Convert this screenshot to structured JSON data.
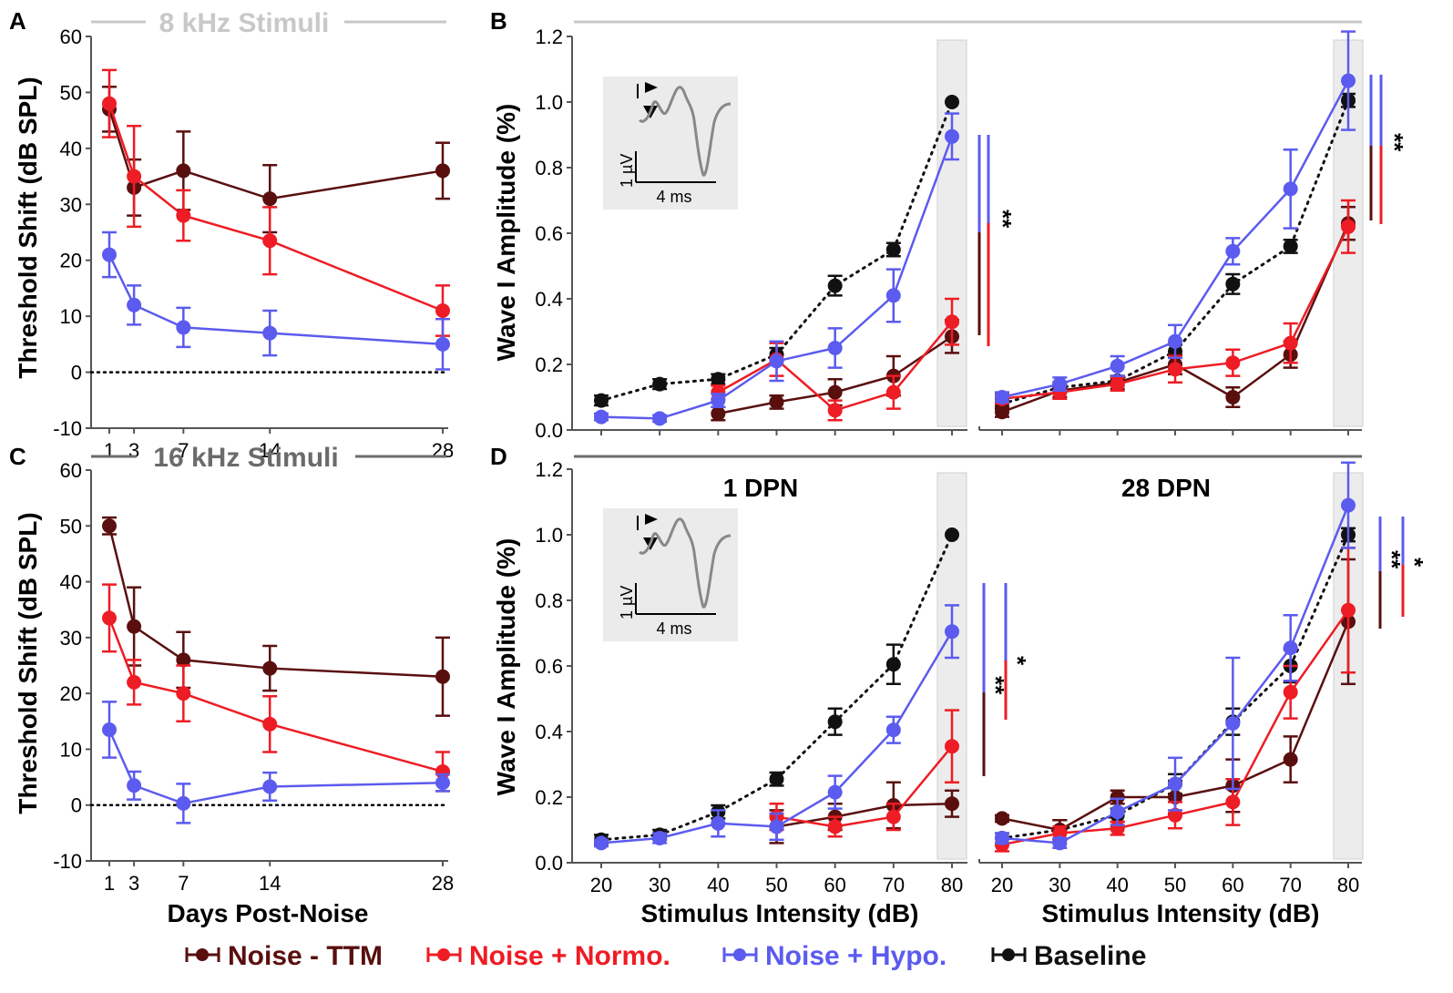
{
  "figure": {
    "colors": {
      "ttm": "#5a0f0f",
      "normo": "#ee1c24",
      "hypo": "#5b5bef",
      "baseline": "#111111",
      "header_light": "#c8c8c8",
      "header_dark": "#6b6b6b",
      "shade": "#ececec"
    },
    "panel_letters": [
      "A",
      "B",
      "C",
      "D"
    ],
    "headers": {
      "top": "8 kHz Stimuli",
      "bottom": "16 kHz Stimuli"
    },
    "legend": {
      "items": [
        {
          "label": "Noise - TTM",
          "color": "#5a0f0f"
        },
        {
          "label": "Noise + Normo.",
          "color": "#ee1c24"
        },
        {
          "label": "Noise + Hypo.",
          "color": "#5b5bef"
        },
        {
          "label": "Baseline",
          "color": "#111111"
        }
      ]
    },
    "inset": {
      "amp_label": "1 µV",
      "time_label": "4 ms"
    },
    "significance": [
      "**",
      "**",
      "**",
      "*",
      "**",
      "*"
    ]
  },
  "chart_data": [
    {
      "id": "A",
      "type": "line",
      "title": "8 kHz Stimuli",
      "xlabel": "Days Post-Noise",
      "ylabel": "Threshold Shift (dB SPL)",
      "ylim": [
        -10,
        60
      ],
      "yticks": [
        -10,
        0,
        10,
        20,
        30,
        40,
        50,
        60
      ],
      "xticks": [
        1,
        3,
        7,
        14,
        28
      ],
      "x": [
        1,
        3,
        7,
        14,
        28
      ],
      "series": [
        {
          "name": "Noise - TTM",
          "values": [
            47,
            33,
            36,
            31,
            36
          ],
          "err": [
            4,
            5,
            7,
            6,
            5
          ]
        },
        {
          "name": "Noise + Normo.",
          "values": [
            48,
            35,
            28,
            23.5,
            11
          ],
          "err": [
            6,
            9,
            4.5,
            6,
            4.5
          ]
        },
        {
          "name": "Noise + Hypo.",
          "values": [
            21,
            12,
            8,
            7,
            5
          ],
          "err": [
            4,
            3.5,
            3.5,
            4,
            4.5
          ]
        }
      ]
    },
    {
      "id": "C",
      "type": "line",
      "title": "16 kHz Stimuli",
      "xlabel": "Days Post-Noise",
      "ylabel": "Threshold Shift (dB SPL)",
      "ylim": [
        -10,
        60
      ],
      "yticks": [
        -10,
        0,
        10,
        20,
        30,
        40,
        50,
        60
      ],
      "xticks": [
        1,
        3,
        7,
        14,
        28
      ],
      "x": [
        1,
        3,
        7,
        14,
        28
      ],
      "series": [
        {
          "name": "Noise - TTM",
          "values": [
            50,
            32,
            26,
            24.5,
            23
          ],
          "err": [
            1.5,
            7,
            5,
            4,
            7
          ]
        },
        {
          "name": "Noise + Normo.",
          "values": [
            33.5,
            22,
            20,
            14.5,
            6
          ],
          "err": [
            6,
            4,
            5,
            5,
            3.5
          ]
        },
        {
          "name": "Noise + Hypo.",
          "values": [
            13.5,
            3.5,
            0.3,
            3.3,
            4
          ],
          "err": [
            5,
            2.5,
            3.5,
            2.5,
            1.5
          ]
        }
      ]
    },
    {
      "id": "B-1DPN",
      "type": "line",
      "xlabel": "",
      "ylabel": "Wave I Amplitude (%)",
      "ylim": [
        0,
        1.2
      ],
      "yticks": [
        0.0,
        0.2,
        0.4,
        0.6,
        0.8,
        1.0,
        1.2
      ],
      "xlim": [
        15,
        82
      ],
      "series": [
        {
          "name": "Baseline",
          "x": [
            20,
            30,
            40,
            50,
            60,
            70,
            80
          ],
          "values": [
            0.09,
            0.14,
            0.155,
            0.23,
            0.44,
            0.55,
            1.0
          ],
          "err": [
            0.015,
            0.015,
            0.015,
            0.02,
            0.03,
            0.02,
            0
          ]
        },
        {
          "name": "Noise - TTM",
          "x": [
            40,
            50,
            60,
            70,
            80
          ],
          "values": [
            0.05,
            0.085,
            0.115,
            0.165,
            0.285
          ],
          "err": [
            0.02,
            0.02,
            0.04,
            0.06,
            0.05
          ]
        },
        {
          "name": "Noise + Normo.",
          "x": [
            40,
            50,
            60,
            70,
            80
          ],
          "values": [
            0.115,
            0.215,
            0.06,
            0.115,
            0.33
          ],
          "err": [
            0.02,
            0.05,
            0.03,
            0.05,
            0.07
          ]
        },
        {
          "name": "Noise + Hypo.",
          "x": [
            20,
            30,
            40,
            50,
            60,
            70,
            80
          ],
          "values": [
            0.04,
            0.035,
            0.09,
            0.21,
            0.25,
            0.41,
            0.895
          ],
          "err": [
            0.01,
            0.01,
            0.02,
            0.06,
            0.06,
            0.08,
            0.07
          ]
        }
      ]
    },
    {
      "id": "B-28DPN",
      "type": "line",
      "xlabel": "",
      "ylabel": "",
      "ylim": [
        0,
        1.2
      ],
      "xlim": [
        15,
        82
      ],
      "series": [
        {
          "name": "Baseline",
          "x": [
            20,
            30,
            40,
            50,
            60,
            70,
            80
          ],
          "values": [
            0.08,
            0.13,
            0.15,
            0.24,
            0.445,
            0.56,
            1.005
          ],
          "err": [
            0.015,
            0.015,
            0.015,
            0.02,
            0.03,
            0.02,
            0.02
          ]
        },
        {
          "name": "Noise - TTM",
          "x": [
            20,
            30,
            40,
            50,
            60,
            70,
            80
          ],
          "values": [
            0.055,
            0.12,
            0.145,
            0.2,
            0.1,
            0.23,
            0.63
          ],
          "err": [
            0.015,
            0.02,
            0.02,
            0.03,
            0.03,
            0.04,
            0.05
          ]
        },
        {
          "name": "Noise + Normo.",
          "x": [
            20,
            30,
            40,
            50,
            60,
            70,
            80
          ],
          "values": [
            0.095,
            0.115,
            0.14,
            0.185,
            0.205,
            0.265,
            0.62
          ],
          "err": [
            0.015,
            0.02,
            0.02,
            0.04,
            0.04,
            0.06,
            0.08
          ]
        },
        {
          "name": "Noise + Hypo.",
          "x": [
            20,
            30,
            40,
            50,
            60,
            70,
            80
          ],
          "values": [
            0.1,
            0.14,
            0.195,
            0.27,
            0.545,
            0.735,
            1.065
          ],
          "err": [
            0.015,
            0.02,
            0.03,
            0.05,
            0.04,
            0.12,
            0.15
          ]
        }
      ]
    },
    {
      "id": "D-1DPN",
      "type": "line",
      "title": "1 DPN",
      "xlabel": "Stimulus Intensity (dB)",
      "ylabel": "Wave I Amplitude (%)",
      "ylim": [
        0,
        1.2
      ],
      "yticks": [
        0.0,
        0.2,
        0.4,
        0.6,
        0.8,
        1.0,
        1.2
      ],
      "xticks": [
        20,
        30,
        40,
        50,
        60,
        70,
        80
      ],
      "xlim": [
        15,
        82
      ],
      "series": [
        {
          "name": "Baseline",
          "x": [
            20,
            30,
            40,
            50,
            60,
            70,
            80
          ],
          "values": [
            0.07,
            0.085,
            0.155,
            0.255,
            0.43,
            0.605,
            1.0
          ],
          "err": [
            0.015,
            0.015,
            0.02,
            0.02,
            0.04,
            0.06,
            0
          ]
        },
        {
          "name": "Noise - TTM",
          "x": [
            50,
            60,
            70,
            80
          ],
          "values": [
            0.11,
            0.14,
            0.175,
            0.18
          ],
          "err": [
            0.05,
            0.04,
            0.07,
            0.04
          ]
        },
        {
          "name": "Noise + Normo.",
          "x": [
            50,
            60,
            70,
            80
          ],
          "values": [
            0.14,
            0.11,
            0.14,
            0.355
          ],
          "err": [
            0.04,
            0.03,
            0.04,
            0.11
          ]
        },
        {
          "name": "Noise + Hypo.",
          "x": [
            20,
            30,
            40,
            50,
            60,
            70,
            80
          ],
          "values": [
            0.06,
            0.075,
            0.12,
            0.11,
            0.215,
            0.405,
            0.705
          ],
          "err": [
            0.01,
            0.015,
            0.04,
            0.04,
            0.05,
            0.04,
            0.08
          ]
        }
      ]
    },
    {
      "id": "D-28DPN",
      "type": "line",
      "title": "28 DPN",
      "xlabel": "Stimulus Intensity (dB)",
      "ylabel": "",
      "ylim": [
        0,
        1.2
      ],
      "xticks": [
        20,
        30,
        40,
        50,
        60,
        70,
        80
      ],
      "xlim": [
        15,
        82
      ],
      "series": [
        {
          "name": "Baseline",
          "x": [
            20,
            30,
            40,
            50,
            60,
            70,
            80
          ],
          "values": [
            0.075,
            0.1,
            0.145,
            0.24,
            0.43,
            0.6,
            1.0
          ],
          "err": [
            0.015,
            0.03,
            0.02,
            0.03,
            0.04,
            0.05,
            0.02
          ]
        },
        {
          "name": "Noise - TTM",
          "x": [
            20,
            30,
            40,
            50,
            60,
            70,
            80
          ],
          "values": [
            0.135,
            0.1,
            0.2,
            0.2,
            0.235,
            0.315,
            0.735
          ],
          "err": [
            0.01,
            0.03,
            0.02,
            0.05,
            0.08,
            0.07,
            0.19
          ]
        },
        {
          "name": "Noise + Normo.",
          "x": [
            20,
            30,
            40,
            50,
            60,
            70,
            80
          ],
          "values": [
            0.055,
            0.09,
            0.105,
            0.145,
            0.185,
            0.52,
            0.77
          ],
          "err": [
            0.02,
            0.02,
            0.02,
            0.04,
            0.07,
            0.08,
            0.19
          ]
        },
        {
          "name": "Noise + Hypo.",
          "x": [
            20,
            30,
            40,
            50,
            60,
            70,
            80
          ],
          "values": [
            0.075,
            0.06,
            0.155,
            0.24,
            0.425,
            0.655,
            1.09
          ],
          "err": [
            0.015,
            0.015,
            0.04,
            0.08,
            0.2,
            0.1,
            0.13
          ]
        }
      ]
    }
  ]
}
